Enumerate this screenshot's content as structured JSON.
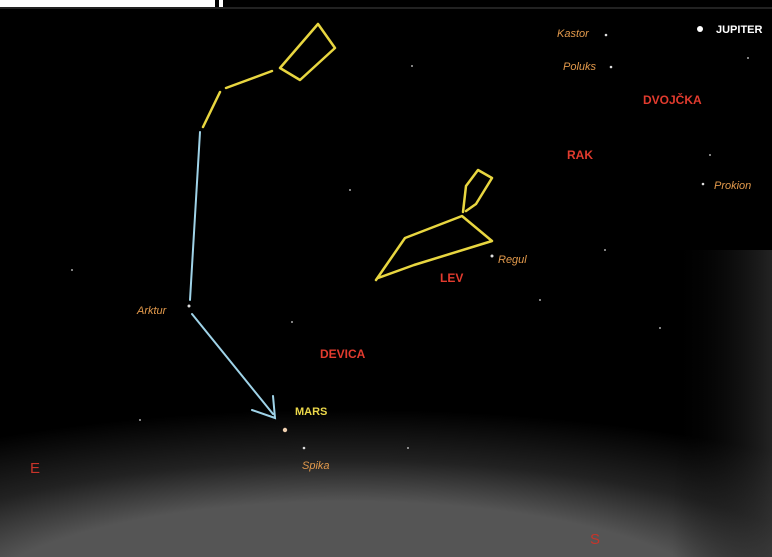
{
  "labels": {
    "kastor": "Kastor",
    "poluks": "Poluks",
    "jupiter": "JUPITER",
    "dvojcka": "DVOJČKA",
    "rak": "RAK",
    "prokion": "Prokion",
    "regul": "Regul",
    "lev": "LEV",
    "arktur": "Arktur",
    "devica": "DEVICA",
    "mars": "MARS",
    "spika": "Spika",
    "east": "E",
    "south": "S"
  }
}
